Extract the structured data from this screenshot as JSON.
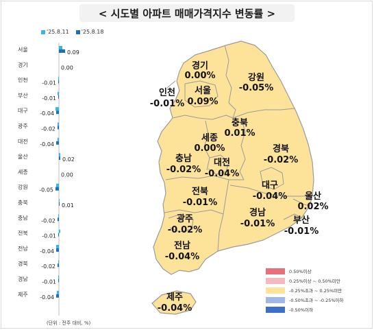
{
  "title": "< 시도별 아파트 매매가격지수 변동률 >",
  "unit_note": "(단위 : 전주 대비, %)",
  "colors": {
    "week1": "#39b4e8",
    "week2": "#1f6fb5",
    "map_fill": "#fde39a",
    "map_stroke": "#9a9a9a"
  },
  "chart_data": {
    "type": "bar",
    "orientation": "horizontal",
    "categories": [
      "서울",
      "경기",
      "인천",
      "부산",
      "대구",
      "광주",
      "대전",
      "울산",
      "세종",
      "강원",
      "충북",
      "충남",
      "전북",
      "전남",
      "경북",
      "경남",
      "제주"
    ],
    "series": [
      {
        "name": "'25.8.11",
        "values": [
          0.05,
          0.0,
          -0.01,
          -0.02,
          -0.05,
          -0.02,
          -0.02,
          0.02,
          0.0,
          -0.04,
          0.01,
          -0.01,
          0.02,
          -0.04,
          -0.01,
          -0.01,
          -0.03
        ]
      },
      {
        "name": "'25.8.18",
        "values": [
          0.09,
          0.0,
          -0.01,
          -0.01,
          -0.04,
          -0.02,
          -0.04,
          0.02,
          0.0,
          -0.05,
          0.01,
          -0.02,
          -0.01,
          -0.04,
          -0.02,
          -0.01,
          -0.04
        ]
      }
    ],
    "value_labels": [
      "0.09",
      "0.00",
      "-0.01",
      "-0.01",
      "-0.04",
      "-0.02",
      "-0.04",
      "0.02",
      "0.00",
      "-0.05",
      "0.01",
      "-0.02",
      "-0.01",
      "-0.04",
      "-0.02",
      "-0.01",
      "-0.04"
    ],
    "title": "",
    "xlabel": "",
    "ylabel": ""
  },
  "map": {
    "regions": [
      {
        "name": "경기",
        "value": "0.00%"
      },
      {
        "name": "강원",
        "value": "-0.05%"
      },
      {
        "name": "인천",
        "value": "-0.01%"
      },
      {
        "name": "서울",
        "value": "0.09%"
      },
      {
        "name": "충북",
        "value": "0.01%"
      },
      {
        "name": "세종",
        "value": "0.00%"
      },
      {
        "name": "경북",
        "value": "-0.02%"
      },
      {
        "name": "충남",
        "value": "-0.02%"
      },
      {
        "name": "대전",
        "value": "-0.04%"
      },
      {
        "name": "대구",
        "value": "-0.04%"
      },
      {
        "name": "전북",
        "value": "-0.01%"
      },
      {
        "name": "울산",
        "value": "0.02%"
      },
      {
        "name": "광주",
        "value": "-0.02%"
      },
      {
        "name": "경남",
        "value": "-0.01%"
      },
      {
        "name": "부산",
        "value": "-0.01%"
      },
      {
        "name": "전남",
        "value": "-0.04%"
      },
      {
        "name": "제주",
        "value": "-0.04%"
      }
    ],
    "legend": [
      {
        "label": "0.50%이상",
        "color": "#e8707a"
      },
      {
        "label": "0.25%이상 ~ 0.50%미만",
        "color": "#f5b8be"
      },
      {
        "label": "-0.25%초과 ~ 0.25%미만",
        "color": "#fde39a"
      },
      {
        "label": "-0.50%초과 ~ -0.25%이하",
        "color": "#9fb8e8"
      },
      {
        "label": "-0.50%이하",
        "color": "#3d6fc8"
      }
    ]
  }
}
